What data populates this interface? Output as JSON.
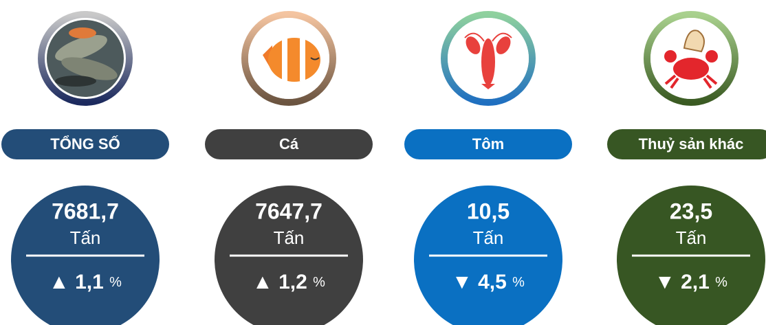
{
  "items": [
    {
      "label": "TỔNG SỐ",
      "value": "7681,7",
      "unit": "Tấn",
      "arrow": "▲",
      "change": "1,1",
      "percent": "%"
    },
    {
      "label": "Cá",
      "value": "7647,7",
      "unit": "Tấn",
      "arrow": "▲",
      "change": "1,2",
      "percent": "%"
    },
    {
      "label": "Tôm",
      "value": "10,5",
      "unit": "Tấn",
      "arrow": "▼",
      "change": "4,5",
      "percent": "%"
    },
    {
      "label": "Thuỷ sản khác",
      "value": "23,5",
      "unit": "Tấn",
      "arrow": "▼",
      "change": "2,1",
      "percent": "%"
    }
  ]
}
